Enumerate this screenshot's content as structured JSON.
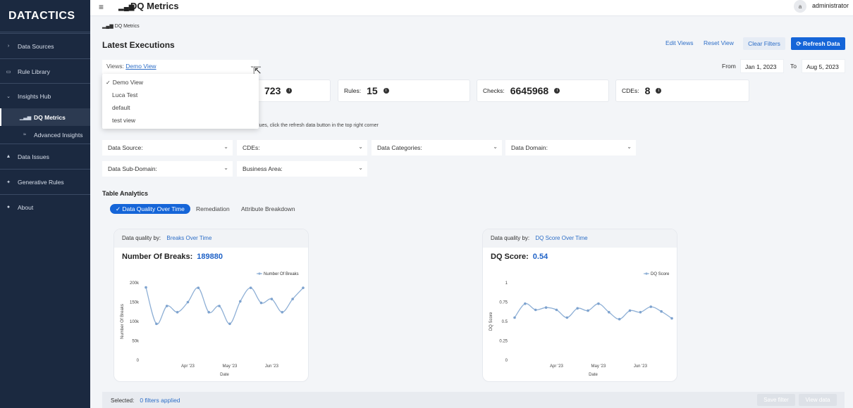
{
  "brand": {
    "logo": "DATACTICS"
  },
  "sidebar": {
    "items": [
      {
        "label": "Data Sources",
        "icon": "chevron-right-icon",
        "glyph": "›"
      },
      {
        "label": "Rule Library",
        "icon": "book-icon",
        "glyph": "▭"
      },
      {
        "label": "Insights Hub",
        "icon": "chevron-down-icon",
        "glyph": "⌄"
      },
      {
        "label": "DQ Metrics",
        "icon": "bar-chart-icon",
        "glyph": "▁▃▅"
      },
      {
        "label": "Advanced Insights",
        "icon": "trend-icon",
        "glyph": "≈"
      },
      {
        "label": "Data Issues",
        "icon": "warning-icon",
        "glyph": "▲"
      },
      {
        "label": "Generative Rules",
        "icon": "wand-icon",
        "glyph": "✦"
      },
      {
        "label": "About",
        "icon": "info-icon",
        "glyph": "●"
      }
    ]
  },
  "header": {
    "title": "DQ Metrics",
    "avatar_letter": "a",
    "user": "administrator"
  },
  "breadcrumb": "DQ Metrics",
  "main": {
    "section_title": "Latest Executions",
    "actions": {
      "edit_views": "Edit Views",
      "reset_view": "Reset View",
      "clear_filters": "Clear Filters",
      "refresh": "Refresh Data"
    },
    "views": {
      "label": "Views:",
      "value": "Demo View"
    },
    "dates": {
      "from_label": "From",
      "from": "Jan 1, 2023",
      "to_label": "To",
      "to": "Aug 5, 2023"
    },
    "stats": [
      {
        "label": "",
        "value": "723"
      },
      {
        "label": "Rules:",
        "value": "15"
      },
      {
        "label": "Checks:",
        "value": "6645968"
      },
      {
        "label": "CDEs:",
        "value": "8"
      }
    ],
    "hint": "lues, click the refresh data button in the top right corner",
    "filters": [
      "Data Source:",
      "CDEs:",
      "Data Categories:",
      "Data Domain:",
      "Data Sub-Domain:",
      "Business Area:"
    ],
    "table_analytics": {
      "title": "Table Analytics",
      "tabs": [
        "Data Quality Over Time",
        "Remediation",
        "Attribute Breakdown"
      ]
    },
    "dropdown": {
      "items": [
        "Demo View",
        "Luca Test",
        "default",
        "test view"
      ]
    },
    "bottom": {
      "selected_label": "Selected:",
      "selected_value": "0 filters applied",
      "save_filter": "Save filter",
      "view_data": "View data"
    }
  },
  "cards": [
    {
      "by_label": "Data quality by:",
      "by_value": "Breaks Over Time",
      "metric_label": "Number Of Breaks:",
      "metric_value": "189880"
    },
    {
      "by_label": "Data quality by:",
      "by_value": "DQ Score Over Time",
      "metric_label": "DQ Score:",
      "metric_value": "0.54"
    }
  ],
  "colors": {
    "accent": "#1565d8",
    "sidebar": "#1b2940",
    "line": "#8fb0d6"
  },
  "chart_data": [
    {
      "type": "line",
      "xlabel": "Date",
      "ylabel": "Number Of Breaks",
      "ylim": [
        0,
        200000
      ],
      "yticks": [
        0,
        50000,
        100000,
        150000,
        200000
      ],
      "ytick_labels": [
        "0",
        "50k",
        "100k",
        "150k",
        "200k"
      ],
      "xtick_labels": [
        "Apr '23",
        "May '23",
        "Jun '23"
      ],
      "xtick_index": [
        4,
        8,
        12
      ],
      "legend": "top-right",
      "series": [
        {
          "name": "Number Of Breaks",
          "values": [
            188000,
            94000,
            140000,
            124000,
            150000,
            187000,
            124000,
            140000,
            94000,
            152000,
            187000,
            148000,
            158000,
            124000,
            158000,
            187000
          ]
        }
      ]
    },
    {
      "type": "line",
      "xlabel": "Date",
      "ylabel": "DQ Score",
      "ylim": [
        0,
        1
      ],
      "yticks": [
        0,
        0.25,
        0.5,
        0.75,
        1
      ],
      "ytick_labels": [
        "0",
        "0.25",
        "0.5",
        "0.75",
        "1"
      ],
      "xtick_labels": [
        "Apr '23",
        "May '23",
        "Jun '23"
      ],
      "xtick_index": [
        4,
        8,
        12
      ],
      "legend": "top-right",
      "series": [
        {
          "name": "DQ Score",
          "values": [
            0.55,
            0.73,
            0.65,
            0.68,
            0.65,
            0.55,
            0.67,
            0.64,
            0.73,
            0.62,
            0.53,
            0.64,
            0.62,
            0.69,
            0.63,
            0.54
          ]
        }
      ]
    }
  ]
}
